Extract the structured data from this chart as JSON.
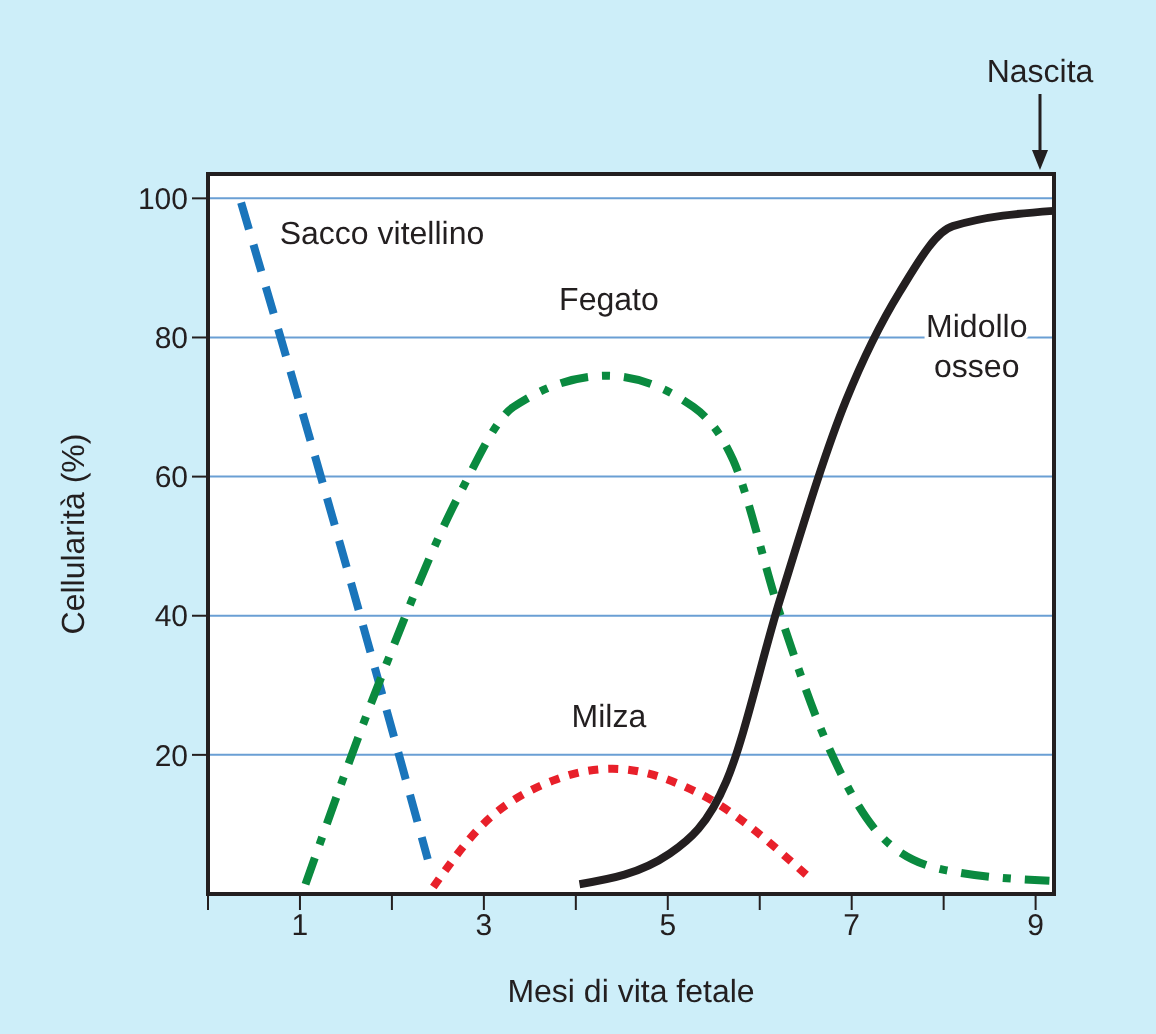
{
  "chart_data": {
    "type": "line",
    "xlabel": "Mesi di vita fetale",
    "ylabel": "Cellularità (%)",
    "xlim": [
      0,
      9.2
    ],
    "xticks": [
      {
        "value": 0,
        "label": null
      },
      1,
      {
        "value": 2,
        "label": null
      },
      3,
      {
        "value": 4,
        "label": null
      },
      5,
      {
        "value": 6,
        "label": null
      },
      7,
      {
        "value": 8,
        "label": null
      },
      9
    ],
    "ylim": [
      0,
      103.5
    ],
    "yticks": [
      20,
      40,
      60,
      80,
      100
    ],
    "grid": "y",
    "marker": "none",
    "annotations": [
      "Nascita"
    ],
    "series": [
      {
        "name": "Sacco vitellino",
        "color": "#1a75bb",
        "line_style": "dashed",
        "x": [
          0.36,
          1.4,
          2.39
        ],
        "values": [
          99.4,
          52,
          5
        ]
      },
      {
        "name": "Fegato",
        "color": "#0a8a3f",
        "line_style": "dashdot",
        "x": [
          1.06,
          1.87,
          2.74,
          3.32,
          4.33,
          5.28,
          5.71,
          6.22,
          6.72,
          7.3,
          8.03,
          9.15
        ],
        "values": [
          1.4,
          30.7,
          57.6,
          70,
          74.5,
          70,
          62.4,
          40.3,
          22,
          8.6,
          3.4,
          1.9
        ]
      },
      {
        "name": "Milza",
        "color": "#e8202a",
        "line_style": "dotted",
        "x": [
          2.45,
          2.96,
          3.75,
          4.4,
          5.35,
          6.51
        ],
        "values": [
          1,
          9.6,
          16.3,
          18,
          14.4,
          2.7
        ]
      },
      {
        "name": "Midollo osseo",
        "color": "#231f20",
        "line_style": "solid",
        "x": [
          4.04,
          5.02,
          5.64,
          6.22,
          6.94,
          7.52,
          8.1,
          9.19
        ],
        "values": [
          1.4,
          5.8,
          16.3,
          42.3,
          71,
          86.5,
          96,
          98.2
        ]
      }
    ]
  }
}
